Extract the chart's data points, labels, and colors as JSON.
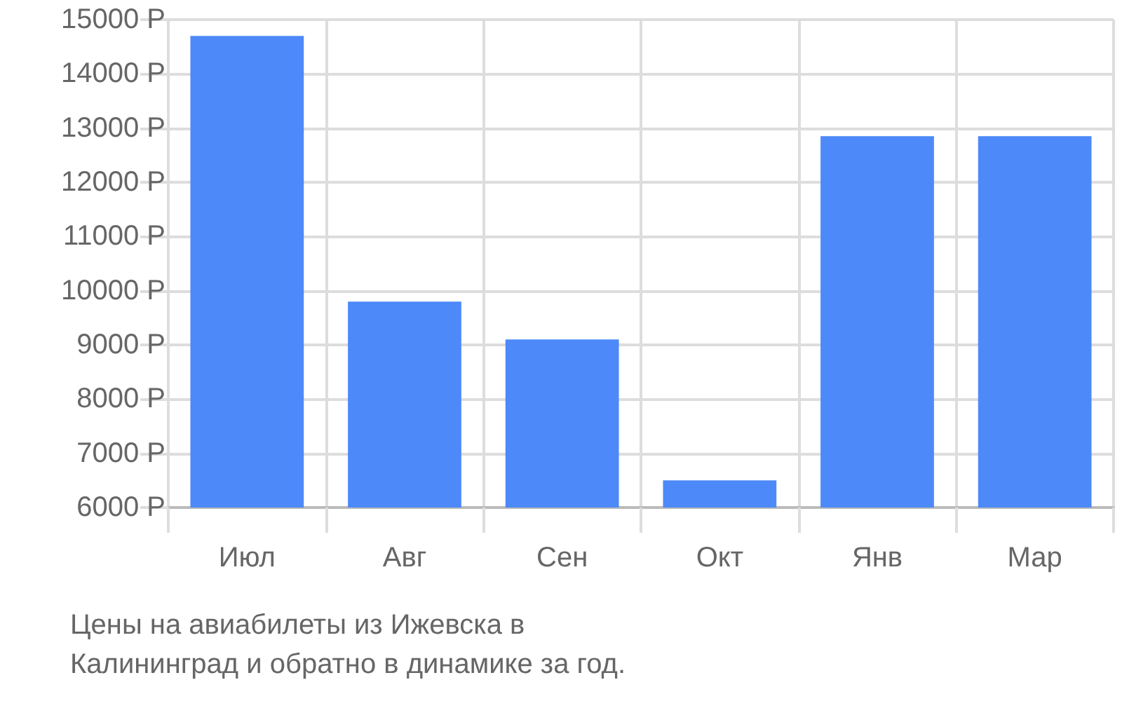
{
  "chart_data": {
    "type": "bar",
    "categories": [
      "Июл",
      "Авг",
      "Сен",
      "Окт",
      "Янв",
      "Мар"
    ],
    "values": [
      14700,
      9800,
      9100,
      6500,
      12850,
      12850
    ],
    "color": "#4d89f9",
    "ylim": [
      6000,
      15000
    ],
    "yticks": [
      {
        "value": 6000,
        "label": "6000 Р"
      },
      {
        "value": 7000,
        "label": "7000 Р"
      },
      {
        "value": 8000,
        "label": "8000 Р"
      },
      {
        "value": 9000,
        "label": "9000 Р"
      },
      {
        "value": 10000,
        "label": "10000 Р"
      },
      {
        "value": 11000,
        "label": "11000 Р"
      },
      {
        "value": 12000,
        "label": "12000 Р"
      },
      {
        "value": 13000,
        "label": "13000 Р"
      },
      {
        "value": 14000,
        "label": "14000 Р"
      },
      {
        "value": 15000,
        "label": "15000 Р"
      }
    ],
    "grid": true,
    "annotations": [
      "Цены на авиабилеты из Ижевска в Калининград и обратно в динамике за год."
    ]
  }
}
